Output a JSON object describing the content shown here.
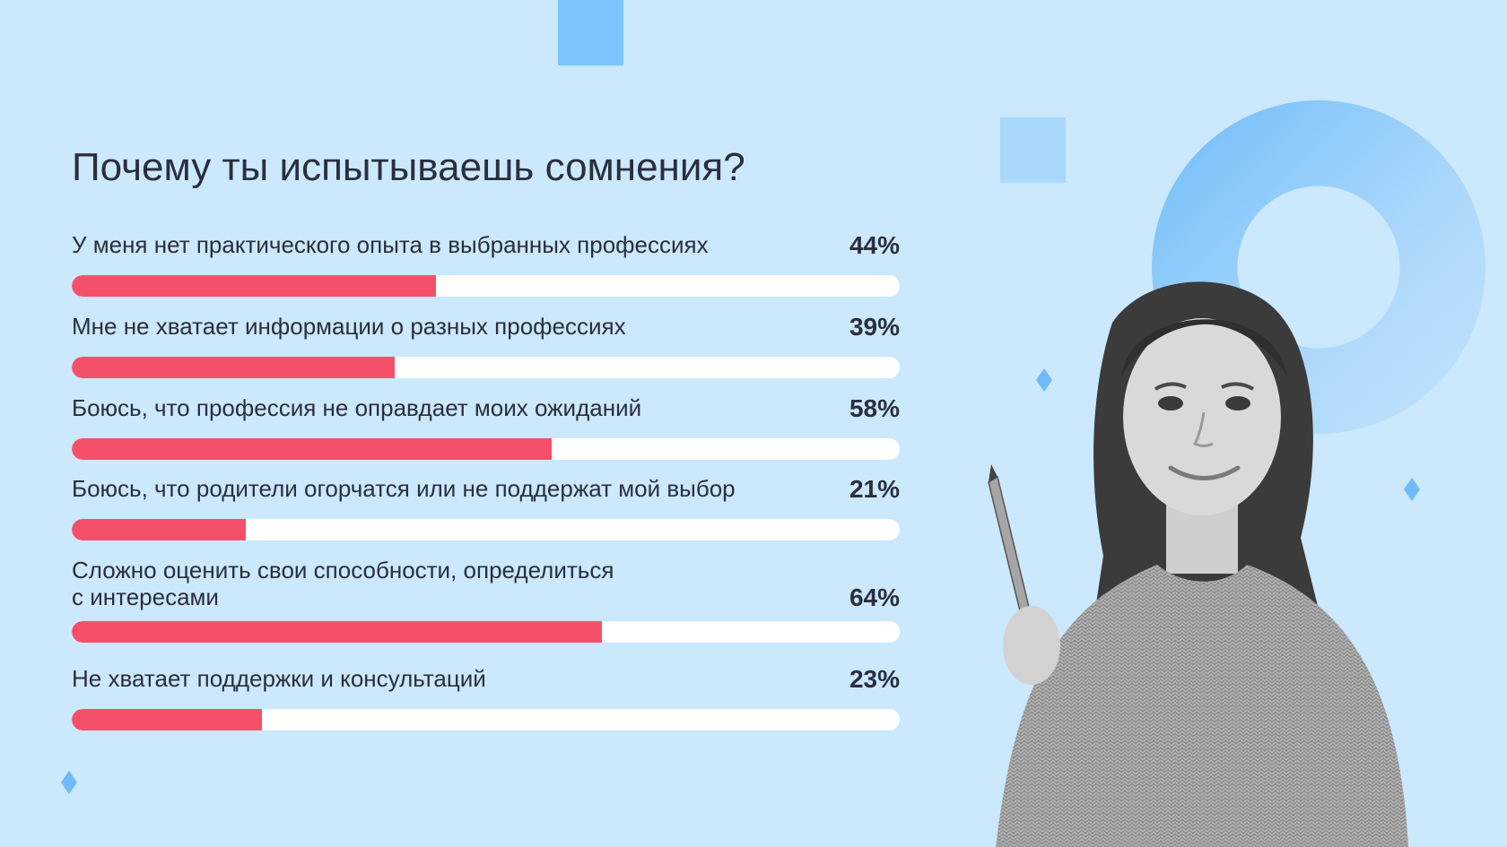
{
  "title": "Почему ты испытываешь сомнения?",
  "colors": {
    "background": "#cbe8fc",
    "bar_fill": "#f5506a",
    "bar_track": "#ffffff",
    "accent_blue": "#7cc4fb",
    "text": "#2a2f3d"
  },
  "chart_data": {
    "type": "bar",
    "orientation": "horizontal",
    "title": "Почему ты испытываешь сомнения?",
    "categories": [
      "У меня нет практического опыта в выбранных профессиях",
      "Мне не хватает информации о разных профессиях",
      "Боюсь, что профессия не оправдает моих ожиданий",
      "Боюсь, что родители огорчатся или не поддержат мой выбор",
      "Сложно оценить свои способности, определиться\nс интересами",
      "Не хватает поддержки и консультаций"
    ],
    "values": [
      44,
      39,
      58,
      21,
      64,
      23
    ],
    "value_labels": [
      "44%",
      "39%",
      "58%",
      "21%",
      "64%",
      "23%"
    ],
    "xlim": [
      0,
      100
    ],
    "grid": false
  },
  "illustration": {
    "icon": "girl-with-pencil-photo"
  }
}
